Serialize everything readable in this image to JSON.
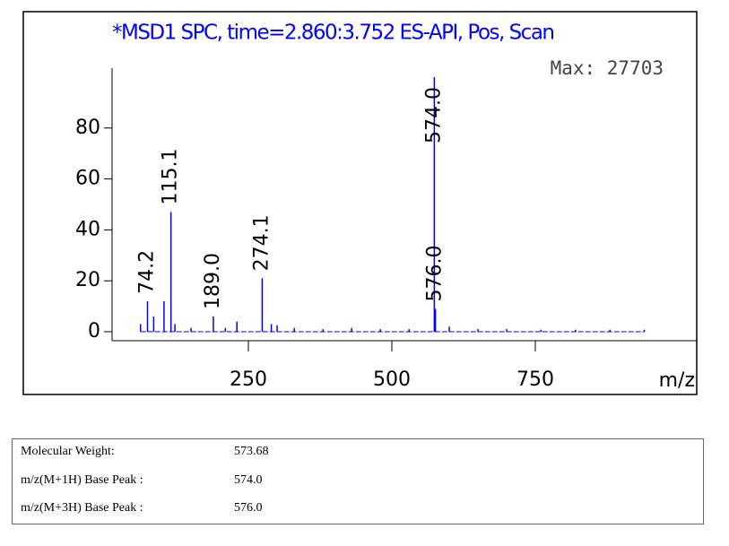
{
  "chart_data": {
    "type": "spectrum",
    "title": "*MSD1 SPC, time=2.860:3.752 ES-API, Pos, Scan",
    "annotation": "Max:  27703",
    "x_axis_label": "m/z",
    "color": "#0000ff",
    "x": [
      62,
      74.2,
      85,
      103,
      115.1,
      122,
      150,
      189.0,
      210,
      230,
      274.1,
      290,
      300,
      330,
      380,
      430,
      480,
      530,
      574.0,
      576.0,
      600,
      650,
      700,
      760,
      820,
      880,
      940
    ],
    "values": [
      3,
      12,
      6,
      12,
      47,
      3,
      1.5,
      6,
      1.5,
      4,
      21,
      3,
      2.5,
      1.5,
      1,
      1.5,
      1,
      1,
      100,
      9,
      2,
      1,
      1,
      0.8,
      0.8,
      0.8,
      0.8
    ],
    "x_labels": [
      null,
      "74.2",
      null,
      null,
      "115.1",
      null,
      null,
      "189.0",
      null,
      null,
      "274.1",
      null,
      null,
      null,
      null,
      null,
      null,
      null,
      "574.0",
      "576.0",
      null,
      null,
      null,
      null,
      null,
      null,
      null
    ],
    "xlim": [
      40,
      1030
    ],
    "ylim": [
      0,
      100
    ],
    "xticks": [
      250,
      500,
      750
    ],
    "yticks": [
      0,
      20,
      40,
      60,
      80
    ]
  },
  "table": {
    "rows": [
      [
        "Molecular Weight:",
        "573.68"
      ],
      [
        "m/z(M+1H) Base Peak :",
        "574.0"
      ],
      [
        "m/z(M+3H) Base Peak :",
        "576.0"
      ]
    ]
  }
}
